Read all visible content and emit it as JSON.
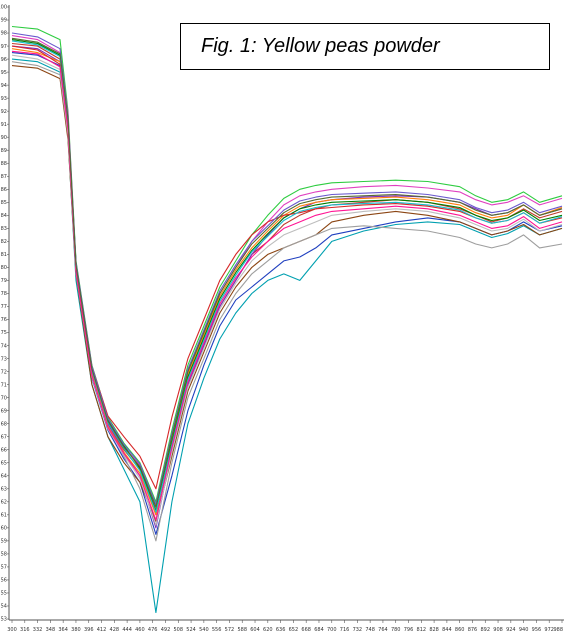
{
  "figure": {
    "caption": "Fig. 1: Yellow peas powder"
  },
  "colors": {
    "axis": "#555555",
    "background": "#ffffff",
    "series_palette": [
      "#c0392b",
      "#2ecc40",
      "#1f3fbf",
      "#e040c0",
      "#00a0b0",
      "#8b4513",
      "#7b2fbe",
      "#9e9e9e",
      "#ff7f0e",
      "#008000",
      "#d62728",
      "#bdbdbd",
      "#17becf",
      "#6a5acd",
      "#ff1493",
      "#556b2f"
    ]
  },
  "chart_data": {
    "type": "line",
    "title": "",
    "xlabel": "",
    "ylabel": "",
    "xlim": [
      300,
      988
    ],
    "ylim": [
      53,
      100
    ],
    "grid": false,
    "legend": "none",
    "x_tick_labels": [
      "300",
      "316",
      "332",
      "348",
      "364",
      "380",
      "396",
      "412",
      "428",
      "444",
      "460",
      "476",
      "492",
      "508",
      "524",
      "540",
      "556",
      "572",
      "588",
      "604",
      "620",
      "636",
      "652",
      "668",
      "684",
      "700",
      "716",
      "732",
      "748",
      "764",
      "780",
      "796",
      "812",
      "828",
      "844",
      "860",
      "876",
      "892",
      "908",
      "924",
      "940",
      "956",
      "972",
      "988"
    ],
    "y_tick_labels": [
      "53",
      "54",
      "55",
      "56",
      "57",
      "58",
      "59",
      "60",
      "61",
      "62",
      "63",
      "64",
      "65",
      "66",
      "67",
      "68",
      "69",
      "70",
      "71",
      "72",
      "73",
      "74",
      "75",
      "76",
      "77",
      "78",
      "79",
      "80",
      "81",
      "82",
      "83",
      "84",
      "85",
      "86",
      "87",
      "88",
      "89",
      "90",
      "91",
      "92",
      "93",
      "94",
      "95",
      "96",
      "97",
      "98",
      "99",
      "100"
    ],
    "x": [
      300,
      332,
      360,
      370,
      380,
      400,
      420,
      440,
      460,
      480,
      500,
      520,
      540,
      560,
      580,
      600,
      620,
      640,
      660,
      680,
      700,
      740,
      780,
      820,
      860,
      880,
      900,
      920,
      940,
      960,
      988
    ],
    "series": [
      {
        "values": [
          97.2,
          97.0,
          96.0,
          91.5,
          80.0,
          72.0,
          68.0,
          66.0,
          64.5,
          61.0,
          66.5,
          71.0,
          74.0,
          77.0,
          79.0,
          81.0,
          82.0,
          83.3,
          84.0,
          84.5,
          84.8,
          85.0,
          85.2,
          85.0,
          84.5,
          84.0,
          83.5,
          83.8,
          84.5,
          83.8,
          84.3
        ]
      },
      {
        "values": [
          98.5,
          98.3,
          97.5,
          92.0,
          80.5,
          72.5,
          68.5,
          66.5,
          65.0,
          62.0,
          67.5,
          72.5,
          75.5,
          78.5,
          80.5,
          82.5,
          84.0,
          85.3,
          86.0,
          86.3,
          86.5,
          86.6,
          86.7,
          86.6,
          86.2,
          85.5,
          85.0,
          85.2,
          85.8,
          85.0,
          85.5
        ]
      },
      {
        "values": [
          96.5,
          96.3,
          95.5,
          90.5,
          79.5,
          71.5,
          67.5,
          65.3,
          63.5,
          59.5,
          64.0,
          69.0,
          72.5,
          75.5,
          77.5,
          78.5,
          79.5,
          80.5,
          80.8,
          81.5,
          82.5,
          83.0,
          83.5,
          83.8,
          83.5,
          83.0,
          82.5,
          82.8,
          83.5,
          82.8,
          83.2
        ]
      },
      {
        "values": [
          97.8,
          97.5,
          96.5,
          91.8,
          80.2,
          72.2,
          68.2,
          66.2,
          64.8,
          61.5,
          67.0,
          72.0,
          75.0,
          78.0,
          80.0,
          82.0,
          83.5,
          84.8,
          85.5,
          85.8,
          86.0,
          86.2,
          86.3,
          86.1,
          85.8,
          85.2,
          84.8,
          85.0,
          85.5,
          84.8,
          85.3
        ]
      },
      {
        "values": [
          96.0,
          95.8,
          95.0,
          90.0,
          79.0,
          71.0,
          67.0,
          64.5,
          62.0,
          53.5,
          62.0,
          68.0,
          71.5,
          74.5,
          76.5,
          78.0,
          79.0,
          79.5,
          79.0,
          80.5,
          82.0,
          82.8,
          83.3,
          83.5,
          83.3,
          82.8,
          82.3,
          82.6,
          83.2,
          82.5,
          83.0
        ]
      },
      {
        "values": [
          95.5,
          95.3,
          94.5,
          89.8,
          79.5,
          71.0,
          67.0,
          65.0,
          63.5,
          60.5,
          65.5,
          70.5,
          73.5,
          76.5,
          78.5,
          80.0,
          81.0,
          81.5,
          82.0,
          82.5,
          83.5,
          84.0,
          84.3,
          84.0,
          83.5,
          83.0,
          82.5,
          82.8,
          83.3,
          82.5,
          83.0
        ]
      },
      {
        "values": [
          97.0,
          96.8,
          95.8,
          91.0,
          80.0,
          72.0,
          68.0,
          65.8,
          64.0,
          60.0,
          66.0,
          71.0,
          74.0,
          77.0,
          79.0,
          81.0,
          82.5,
          83.8,
          84.5,
          85.0,
          85.2,
          85.4,
          85.5,
          85.4,
          85.0,
          84.5,
          84.0,
          84.2,
          84.8,
          84.0,
          84.5
        ]
      },
      {
        "values": [
          95.8,
          95.5,
          94.8,
          90.2,
          79.8,
          71.8,
          67.8,
          65.5,
          63.0,
          59.0,
          65.0,
          70.0,
          73.0,
          76.0,
          78.0,
          79.5,
          80.5,
          81.5,
          82.0,
          82.5,
          83.0,
          83.2,
          83.0,
          82.8,
          82.3,
          81.8,
          81.5,
          81.8,
          82.5,
          81.5,
          81.8
        ]
      },
      {
        "values": [
          96.8,
          96.5,
          95.8,
          90.8,
          79.8,
          71.8,
          67.8,
          65.8,
          64.2,
          61.0,
          66.8,
          71.8,
          74.8,
          77.8,
          79.8,
          81.5,
          82.8,
          84.0,
          84.7,
          85.0,
          85.2,
          85.3,
          85.4,
          85.2,
          84.8,
          84.2,
          83.8,
          84.0,
          84.8,
          84.0,
          84.6
        ]
      },
      {
        "values": [
          97.5,
          97.2,
          96.3,
          91.3,
          80.3,
          72.3,
          68.3,
          66.3,
          64.6,
          61.3,
          66.6,
          71.6,
          74.6,
          77.6,
          79.6,
          81.3,
          82.6,
          83.8,
          84.5,
          84.8,
          85.0,
          85.1,
          85.2,
          85.0,
          84.6,
          84.0,
          83.6,
          83.8,
          84.4,
          83.6,
          84.0
        ]
      },
      {
        "values": [
          97.0,
          96.7,
          95.6,
          90.9,
          80.2,
          72.4,
          68.6,
          67.0,
          65.5,
          63.0,
          68.5,
          73.0,
          76.0,
          79.0,
          81.0,
          82.5,
          83.5,
          84.0,
          84.2,
          84.5,
          84.6,
          84.8,
          84.9,
          84.7,
          84.3,
          83.8,
          83.4,
          83.6,
          84.2,
          83.4,
          83.8
        ]
      },
      {
        "values": [
          96.3,
          96.0,
          95.2,
          90.3,
          79.6,
          71.6,
          67.6,
          65.6,
          63.8,
          60.2,
          65.8,
          70.8,
          73.8,
          76.8,
          78.8,
          80.5,
          81.6,
          82.5,
          83.0,
          83.5,
          84.0,
          84.3,
          84.5,
          84.3,
          83.8,
          83.3,
          82.8,
          83.0,
          83.7,
          82.8,
          83.3
        ]
      },
      {
        "values": [
          97.4,
          97.1,
          96.2,
          91.2,
          80.1,
          72.1,
          68.1,
          66.1,
          64.4,
          61.2,
          66.4,
          71.4,
          74.4,
          77.4,
          79.4,
          81.2,
          82.4,
          83.6,
          84.3,
          84.6,
          84.8,
          84.9,
          85.0,
          84.8,
          84.4,
          83.8,
          83.4,
          83.6,
          84.2,
          83.4,
          83.9
        ]
      },
      {
        "values": [
          98.0,
          97.7,
          96.8,
          91.6,
          80.4,
          72.4,
          68.4,
          66.4,
          64.9,
          61.8,
          67.2,
          72.2,
          75.2,
          78.2,
          80.2,
          82.0,
          83.2,
          84.4,
          85.1,
          85.4,
          85.6,
          85.7,
          85.8,
          85.6,
          85.2,
          84.6,
          84.2,
          84.4,
          85.0,
          84.2,
          84.7
        ]
      },
      {
        "values": [
          96.6,
          96.4,
          95.4,
          90.6,
          79.7,
          71.7,
          67.7,
          65.7,
          64.0,
          60.6,
          66.2,
          71.2,
          74.2,
          77.2,
          79.2,
          80.8,
          82.0,
          83.0,
          83.5,
          84.0,
          84.3,
          84.5,
          84.7,
          84.5,
          84.0,
          83.5,
          83.0,
          83.2,
          83.9,
          83.0,
          83.5
        ]
      },
      {
        "values": [
          97.6,
          97.3,
          96.4,
          91.4,
          80.2,
          72.2,
          68.2,
          66.2,
          64.7,
          61.6,
          67.0,
          72.0,
          75.0,
          78.0,
          80.0,
          81.8,
          83.0,
          84.2,
          84.9,
          85.2,
          85.4,
          85.5,
          85.6,
          85.4,
          85.0,
          84.4,
          84.0,
          84.2,
          84.8,
          84.0,
          84.5
        ]
      }
    ]
  }
}
